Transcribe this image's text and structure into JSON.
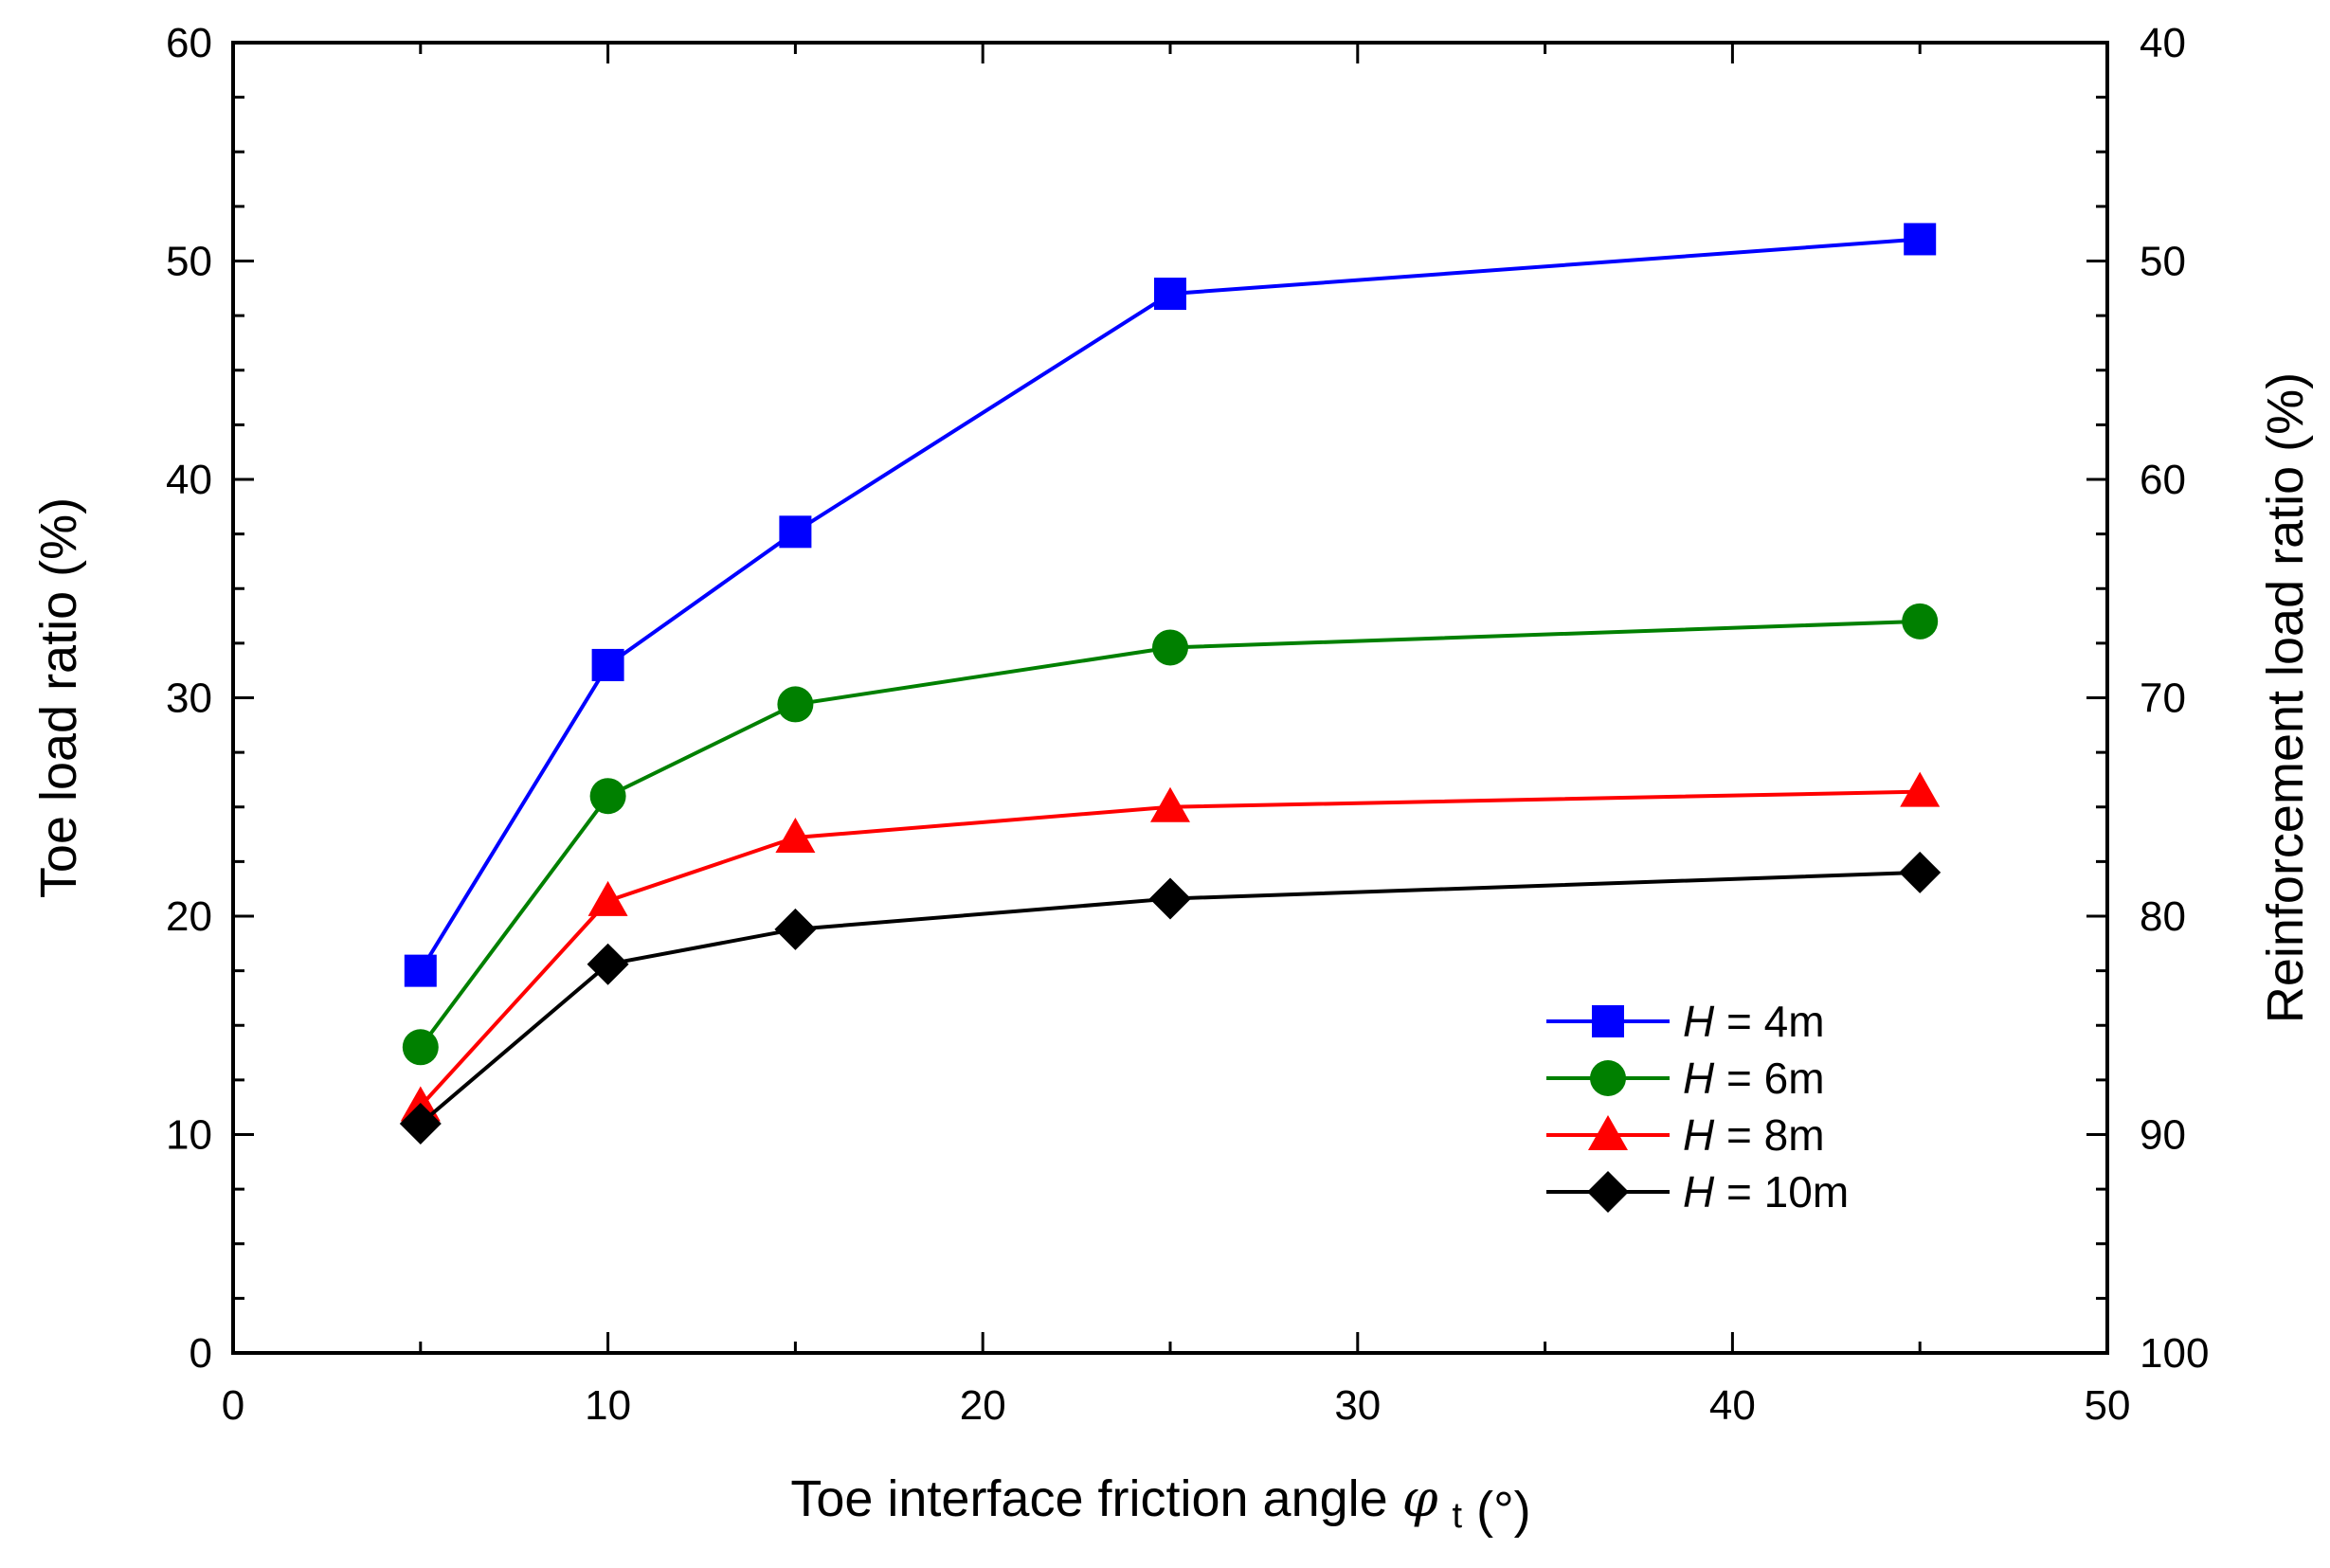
{
  "chart_data": {
    "type": "line",
    "title": "",
    "xlabel": "Toe interface friction angle",
    "xlabel_symbol": "φ",
    "xlabel_subscript": "t",
    "xlabel_unit": "(°)",
    "ylabel": "Toe load ratio (%)",
    "y2label": "Reinforcement load ratio (%)",
    "xlim": [
      0,
      50
    ],
    "ylim": [
      0,
      60
    ],
    "y2lim": [
      100,
      40
    ],
    "x_ticks": [
      0,
      10,
      20,
      30,
      40,
      50
    ],
    "y_ticks": [
      0,
      10,
      20,
      30,
      40,
      50,
      60
    ],
    "y2_ticks": [
      100,
      90,
      80,
      70,
      60,
      50,
      40
    ],
    "grid": false,
    "legend_position": "bottom-right",
    "x": [
      5,
      10,
      15,
      25,
      45
    ],
    "series": [
      {
        "name": "H = 4m",
        "var": "H",
        "rest": " = 4m",
        "color": "#0000ff",
        "marker": "square",
        "values": [
          17.5,
          31.5,
          37.6,
          48.5,
          51.0
        ]
      },
      {
        "name": "H = 6m",
        "var": "H",
        "rest": " = 6m",
        "color": "#008000",
        "marker": "circle",
        "values": [
          14.0,
          25.5,
          29.7,
          32.3,
          33.5
        ]
      },
      {
        "name": "H = 8m",
        "var": "H",
        "rest": " = 8m",
        "color": "#ff0000",
        "marker": "triangle",
        "values": [
          11.3,
          20.7,
          23.6,
          25.0,
          25.7
        ]
      },
      {
        "name": "H = 10m",
        "var": "H",
        "rest": " = 10m",
        "color": "#000000",
        "marker": "diamond",
        "values": [
          10.5,
          17.8,
          19.4,
          20.8,
          22.0
        ]
      }
    ]
  }
}
